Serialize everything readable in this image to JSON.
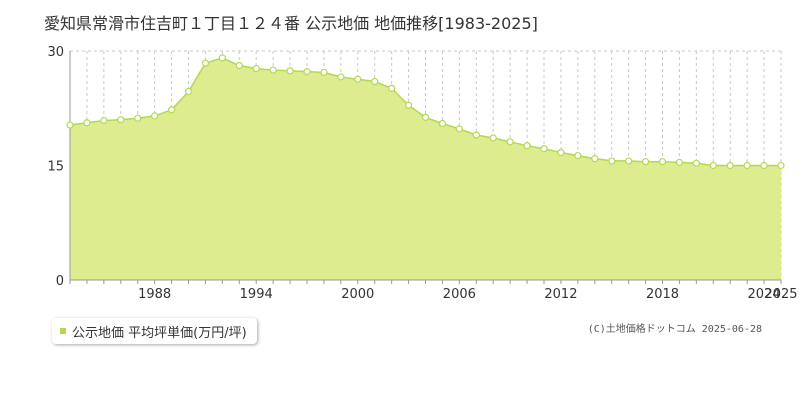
{
  "title": "愛知県常滑市住吉町１丁目１２４番 公示地価 地価推移[1983-2025]",
  "legend": {
    "label": "公示地価 平均坪単価(万円/坪)"
  },
  "copyright": "(C)土地価格ドットコム 2025-06-28",
  "colors": {
    "fill": "#dcec8e",
    "line": "#b5d84f",
    "grid": "#c8c8c8",
    "axis": "#999999",
    "text": "#333333"
  },
  "chart_data": {
    "type": "area",
    "title": "",
    "xlabel": "",
    "ylabel": "",
    "xlim": [
      1983,
      2025
    ],
    "ylim": [
      0,
      30
    ],
    "yticks": [
      0,
      15,
      30
    ],
    "xticks": [
      1988,
      1994,
      2000,
      2006,
      2012,
      2018,
      2024,
      2025
    ],
    "grid": true,
    "legend_position": "bottom-left",
    "series": [
      {
        "name": "公示地価 平均坪単価(万円/坪)",
        "x": [
          1983,
          1984,
          1985,
          1986,
          1987,
          1988,
          1989,
          1990,
          1991,
          1992,
          1993,
          1994,
          1995,
          1996,
          1997,
          1998,
          1999,
          2000,
          2001,
          2002,
          2003,
          2004,
          2005,
          2006,
          2007,
          2008,
          2009,
          2010,
          2011,
          2012,
          2013,
          2014,
          2015,
          2016,
          2017,
          2018,
          2019,
          2020,
          2021,
          2022,
          2023,
          2024,
          2025
        ],
        "values": [
          20.3,
          20.6,
          20.9,
          21.0,
          21.2,
          21.5,
          22.3,
          24.7,
          28.4,
          29.1,
          28.1,
          27.7,
          27.5,
          27.4,
          27.3,
          27.2,
          26.6,
          26.3,
          26.0,
          25.1,
          22.9,
          21.3,
          20.5,
          19.8,
          19.0,
          18.6,
          18.1,
          17.6,
          17.2,
          16.7,
          16.3,
          15.9,
          15.6,
          15.6,
          15.5,
          15.5,
          15.4,
          15.3,
          15.0,
          15.0,
          15.0,
          15.0,
          15.0
        ]
      }
    ]
  }
}
